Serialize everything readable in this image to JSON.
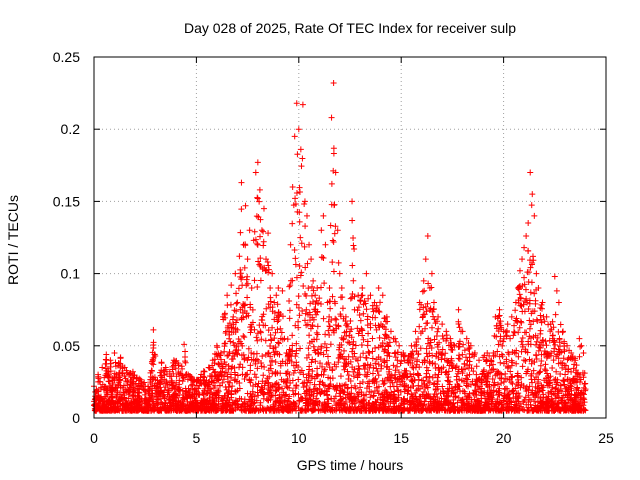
{
  "chart_data": {
    "type": "scatter",
    "title": "Day 028 of 2025, Rate Of TEC Index for receiver sulp",
    "xlabel": "GPS time / hours",
    "ylabel": "ROTI / TECUs",
    "xlim": [
      0,
      25
    ],
    "ylim": [
      0,
      0.25
    ],
    "x_ticks": [
      "0",
      "5",
      "10",
      "15",
      "20",
      "25"
    ],
    "y_ticks": [
      "0",
      "0.05",
      "0.1",
      "0.15",
      "0.2",
      "0.25"
    ],
    "grid": true,
    "marker": "+",
    "color": "#ff0000",
    "series": [
      {
        "points": [
          [
            0.0,
            0.022
          ],
          [
            0.1,
            0.018
          ],
          [
            0.2,
            0.03
          ],
          [
            0.3,
            0.025
          ],
          [
            0.4,
            0.035
          ],
          [
            0.5,
            0.028
          ],
          [
            0.6,
            0.044
          ],
          [
            0.7,
            0.032
          ],
          [
            0.8,
            0.04
          ],
          [
            0.9,
            0.026
          ],
          [
            1.0,
            0.045
          ],
          [
            1.1,
            0.03
          ],
          [
            1.2,
            0.038
          ],
          [
            1.3,
            0.042
          ],
          [
            1.5,
            0.035
          ],
          [
            1.7,
            0.03
          ],
          [
            1.9,
            0.032
          ],
          [
            2.1,
            0.028
          ],
          [
            2.3,
            0.025
          ],
          [
            2.5,
            0.022
          ],
          [
            2.7,
            0.02
          ],
          [
            2.9,
            0.061
          ],
          [
            3.1,
            0.024
          ],
          [
            3.3,
            0.038
          ],
          [
            3.5,
            0.035
          ],
          [
            3.7,
            0.032
          ],
          [
            3.9,
            0.04
          ],
          [
            4.1,
            0.038
          ],
          [
            4.3,
            0.034
          ],
          [
            4.4,
            0.051
          ],
          [
            4.6,
            0.03
          ],
          [
            4.8,
            0.026
          ],
          [
            5.0,
            0.025
          ],
          [
            5.2,
            0.028
          ],
          [
            5.4,
            0.032
          ],
          [
            5.6,
            0.035
          ],
          [
            5.8,
            0.04
          ],
          [
            6.0,
            0.05
          ],
          [
            6.2,
            0.045
          ],
          [
            6.3,
            0.07
          ],
          [
            6.5,
            0.085
          ],
          [
            6.6,
            0.06
          ],
          [
            6.7,
            0.092
          ],
          [
            6.8,
            0.07
          ],
          [
            6.9,
            0.1
          ],
          [
            7.0,
            0.08
          ],
          [
            7.1,
            0.112
          ],
          [
            7.2,
            0.163
          ],
          [
            7.3,
            0.12
          ],
          [
            7.4,
            0.147
          ],
          [
            7.5,
            0.11
          ],
          [
            7.6,
            0.13
          ],
          [
            7.7,
            0.09
          ],
          [
            7.8,
            0.123
          ],
          [
            7.9,
            0.17
          ],
          [
            8.0,
            0.177
          ],
          [
            8.1,
            0.158
          ],
          [
            8.2,
            0.13
          ],
          [
            8.3,
            0.145
          ],
          [
            8.4,
            0.11
          ],
          [
            8.5,
            0.128
          ],
          [
            8.6,
            0.09
          ],
          [
            8.7,
            0.1
          ],
          [
            8.8,
            0.08
          ],
          [
            8.9,
            0.085
          ],
          [
            9.0,
            0.09
          ],
          [
            9.1,
            0.072
          ],
          [
            9.2,
            0.088
          ],
          [
            9.3,
            0.055
          ],
          [
            9.4,
            0.045
          ],
          [
            9.6,
            0.12
          ],
          [
            9.7,
            0.16
          ],
          [
            9.8,
            0.195
          ],
          [
            9.9,
            0.218
          ],
          [
            10.0,
            0.2
          ],
          [
            10.1,
            0.186
          ],
          [
            10.2,
            0.217
          ],
          [
            10.3,
            0.15
          ],
          [
            10.4,
            0.14
          ],
          [
            10.5,
            0.12
          ],
          [
            10.6,
            0.11
          ],
          [
            10.7,
            0.095
          ],
          [
            10.8,
            0.085
          ],
          [
            10.9,
            0.09
          ],
          [
            11.0,
            0.083
          ],
          [
            11.1,
            0.13
          ],
          [
            11.2,
            0.14
          ],
          [
            11.3,
            0.12
          ],
          [
            11.4,
            0.08
          ],
          [
            11.5,
            0.09
          ],
          [
            11.6,
            0.208
          ],
          [
            11.7,
            0.232
          ],
          [
            11.8,
            0.17
          ],
          [
            11.9,
            0.13
          ],
          [
            12.0,
            0.1
          ],
          [
            12.1,
            0.09
          ],
          [
            12.3,
            0.07
          ],
          [
            12.5,
            0.06
          ],
          [
            12.6,
            0.15
          ],
          [
            12.7,
            0.117
          ],
          [
            12.9,
            0.085
          ],
          [
            13.1,
            0.09
          ],
          [
            13.3,
            0.1
          ],
          [
            13.5,
            0.085
          ],
          [
            13.7,
            0.08
          ],
          [
            13.9,
            0.09
          ],
          [
            14.1,
            0.085
          ],
          [
            14.3,
            0.07
          ],
          [
            14.5,
            0.06
          ],
          [
            14.7,
            0.055
          ],
          [
            14.9,
            0.05
          ],
          [
            15.1,
            0.045
          ],
          [
            15.3,
            0.04
          ],
          [
            15.5,
            0.05
          ],
          [
            15.7,
            0.06
          ],
          [
            15.9,
            0.08
          ],
          [
            16.1,
            0.095
          ],
          [
            16.2,
            0.11
          ],
          [
            16.3,
            0.126
          ],
          [
            16.4,
            0.09
          ],
          [
            16.5,
            0.1
          ],
          [
            16.6,
            0.08
          ],
          [
            16.8,
            0.07
          ],
          [
            17.0,
            0.065
          ],
          [
            17.2,
            0.06
          ],
          [
            17.4,
            0.055
          ],
          [
            17.6,
            0.05
          ],
          [
            17.8,
            0.075
          ],
          [
            18.0,
            0.06
          ],
          [
            18.2,
            0.055
          ],
          [
            18.4,
            0.05
          ],
          [
            18.6,
            0.045
          ],
          [
            18.8,
            0.04
          ],
          [
            19.0,
            0.042
          ],
          [
            19.2,
            0.045
          ],
          [
            19.4,
            0.04
          ],
          [
            19.6,
            0.07
          ],
          [
            19.8,
            0.075
          ],
          [
            20.0,
            0.06
          ],
          [
            20.2,
            0.065
          ],
          [
            20.4,
            0.07
          ],
          [
            20.6,
            0.08
          ],
          [
            20.7,
            0.09
          ],
          [
            20.8,
            0.102
          ],
          [
            20.9,
            0.11
          ],
          [
            21.0,
            0.118
          ],
          [
            21.1,
            0.126
          ],
          [
            21.2,
            0.135
          ],
          [
            21.3,
            0.17
          ],
          [
            21.4,
            0.155
          ],
          [
            21.5,
            0.14
          ],
          [
            21.6,
            0.1
          ],
          [
            21.7,
            0.09
          ],
          [
            21.9,
            0.08
          ],
          [
            22.1,
            0.07
          ],
          [
            22.3,
            0.065
          ],
          [
            22.5,
            0.098
          ],
          [
            22.6,
            0.088
          ],
          [
            22.7,
            0.08
          ],
          [
            22.9,
            0.06
          ],
          [
            23.1,
            0.05
          ],
          [
            23.3,
            0.045
          ],
          [
            23.5,
            0.04
          ],
          [
            23.7,
            0.055
          ],
          [
            23.8,
            0.05
          ],
          [
            23.9,
            0.045
          ],
          [
            24.0,
            0.02
          ]
        ]
      }
    ]
  }
}
